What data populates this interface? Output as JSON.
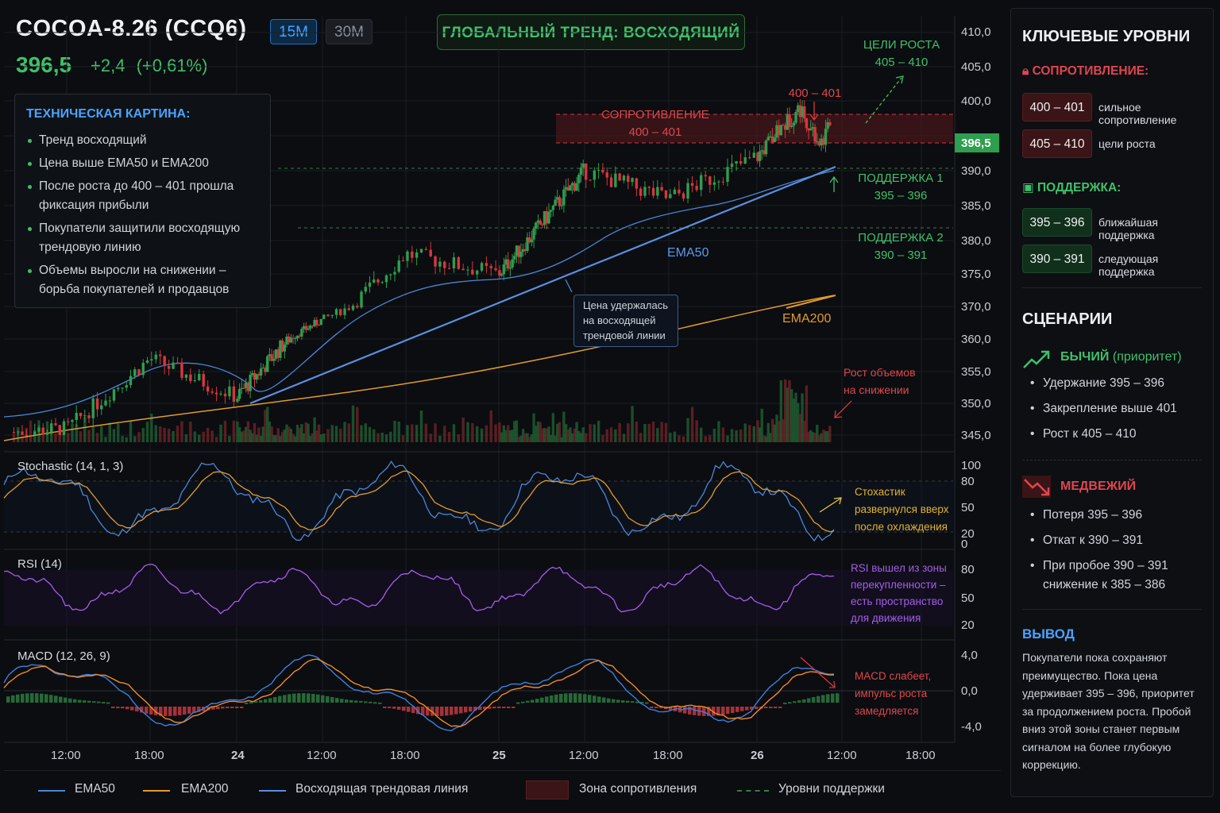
{
  "header": {
    "ticker": "COCOA-8.26 (CCQ6)",
    "timeframes": [
      "15M",
      "30M"
    ],
    "price": "396,5",
    "change": "+2,4",
    "change_pct": "(+0,61%)",
    "global_trend": "ГЛОБАЛЬНЫЙ ТРЕНД: ВОСХОДЯЩИЙ"
  },
  "technical": {
    "title": "ТЕХНИЧЕСКАЯ КАРТИНА:",
    "items": [
      "Тренд восходящий",
      "Цена выше EMA50 и EMA200",
      "После роста до 400 – 401 прошла фиксация прибыли",
      "Покупатели защитили восходящую трендовую линию",
      "Объемы выросли на снижении – борьба покупателей и продавцов"
    ]
  },
  "annotations": {
    "targets": [
      "ЦЕЛИ РОСТА",
      "405 – 410"
    ],
    "peak": "400 – 401",
    "resistance": [
      "СОПРОТИВЛЕНИЕ",
      "400 – 401"
    ],
    "support1": [
      "ПОДДЕРЖКА 1",
      "395 – 396"
    ],
    "support2": [
      "ПОДДЕРЖКА 2",
      "390 – 391"
    ],
    "ema50": "EMA50",
    "ema200": "EMA200",
    "trendline_note": [
      "Цена удержалась",
      "на восходящей",
      "трендовой линии"
    ],
    "volume_note": [
      "Рост объемов",
      "на снижении"
    ],
    "stoch_note": [
      "Стохастик",
      "развернулся вверх",
      "после охлаждения"
    ],
    "rsi_note": [
      "RSI вышел из зоны",
      "перекупленности –",
      "есть пространство",
      "для движения"
    ],
    "macd_note": [
      "MACD слабеет,",
      "импульс роста",
      "замедляется"
    ],
    "last_price_tag": "396,5"
  },
  "indicators": {
    "stoch_title": "Stochastic (14, 1, 3)",
    "rsi_title": "RSI (14)",
    "macd_title": "MACD (12, 26, 9)"
  },
  "legend": {
    "ema50": "EMA50",
    "ema200": "EMA200",
    "trendline": "Восходящая трендовая линия",
    "res_zone": "Зона сопротивления",
    "support": "Уровни поддержки"
  },
  "side": {
    "key_levels_title": "КЛЮЧЕВЫЕ УРОВНИ",
    "resistance_title": "СОПРОТИВЛЕНИЕ:",
    "resistance_levels": [
      {
        "level": "400 – 401",
        "desc": "сильное сопротивление"
      },
      {
        "level": "405 – 410",
        "desc": "цели роста"
      }
    ],
    "support_title": "ПОДДЕРЖКА:",
    "support_levels": [
      {
        "level": "395 – 396",
        "desc": "ближайшая поддержка"
      },
      {
        "level": "390 – 391",
        "desc": "следующая поддержка"
      }
    ],
    "scenarios_title": "СЦЕНАРИИ",
    "bull_title": "БЫЧИЙ",
    "bull_priority": "(приоритет)",
    "bull_items": [
      "Удержание 395 – 396",
      "Закрепление выше 401",
      "Рост к 405 – 410"
    ],
    "bear_title": "МЕДВЕЖИЙ",
    "bear_items": [
      "Потеря 395 – 396",
      "Откат к 390 – 391",
      "При пробое 390 – 391 снижение к 385 – 386"
    ],
    "conclusion_title": "ВЫВОД",
    "conclusion_text": "Покупатели пока сохраняют преимущество. Пока цена удерживает 395 – 396, приоритет за продолжением роста. Пробой вниз этой зоны станет первым сигналом на более глубокую коррекцию."
  },
  "colors": {
    "up": "#2e9e4f",
    "down": "#d9363e",
    "ema50": "#4c86d8",
    "ema200": "#e39a2d",
    "trend": "#5a8fe0",
    "rsi": "#a45ee8",
    "macd": "#3d7fe0",
    "signal": "#f08a2a"
  },
  "chart_data": {
    "type": "candlestick",
    "symbol": "COCOA-8.26 (CCQ6)",
    "timeframe": "15M",
    "y_ticks": [
      "410,0",
      "405,0",
      "400,0",
      "396,5",
      "390,0",
      "385,0",
      "380,0",
      "375,0",
      "370,0",
      "360,0",
      "355,0",
      "350,0",
      "345,0"
    ],
    "x_ticks": [
      "12:00",
      "18:00",
      "24",
      "12:00",
      "18:00",
      "25",
      "12:00",
      "18:00",
      "26",
      "12:00",
      "18:00"
    ],
    "close_path": [
      {
        "x": "23 12:00",
        "y": 346
      },
      {
        "x": "23 18:00",
        "y": 357
      },
      {
        "x": "24 00:00",
        "y": 351
      },
      {
        "x": "24 12:00",
        "y": 366
      },
      {
        "x": "24 18:00",
        "y": 378
      },
      {
        "x": "25 00:00",
        "y": 375
      },
      {
        "x": "25 12:00",
        "y": 390
      },
      {
        "x": "25 18:00",
        "y": 386
      },
      {
        "x": "26 00:00",
        "y": 392
      },
      {
        "x": "26 06:00",
        "y": 399
      },
      {
        "x": "26 09:00",
        "y": 394
      },
      {
        "x": "26 10:30",
        "y": 396.5
      }
    ],
    "resistance_zone": [
      400,
      401
    ],
    "support_levels": [
      [
        395,
        396
      ],
      [
        390,
        391
      ]
    ],
    "targets": [
      405,
      410
    ],
    "last": 396.5,
    "stochastic": {
      "params": "14, 1, 3",
      "y_ticks": [
        "100",
        "80",
        "50",
        "20",
        "0"
      ]
    },
    "rsi": {
      "params": "14",
      "y_ticks": [
        "80",
        "50",
        "20"
      ]
    },
    "macd": {
      "params": "12, 26, 9",
      "y_ticks": [
        "4,0",
        "0,0",
        "-4,0"
      ]
    }
  }
}
